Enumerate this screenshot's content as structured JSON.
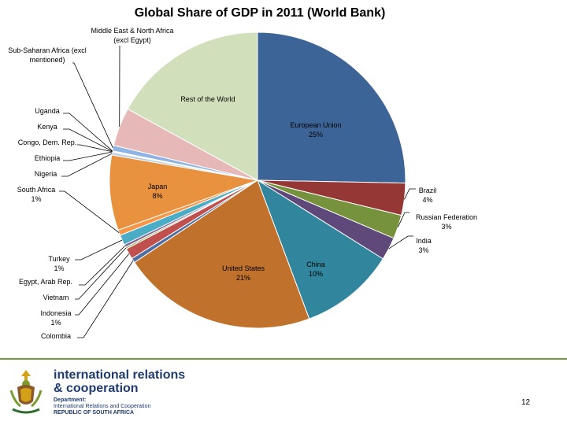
{
  "chart_data": {
    "type": "pie",
    "title": "Global Share of GDP in 2011 (World Bank)",
    "slices": [
      {
        "name": "European Union",
        "value_label": "25%",
        "value": 25.3,
        "color": "#3d6496"
      },
      {
        "name": "Brazil",
        "value_label": "4%",
        "value": 3.5,
        "color": "#953735"
      },
      {
        "name": "Russian Federation",
        "value_label": "3%",
        "value": 2.6,
        "color": "#76923c"
      },
      {
        "name": "India",
        "value_label": "3%",
        "value": 2.5,
        "color": "#5f497a"
      },
      {
        "name": "China",
        "value_label": "10%",
        "value": 10.4,
        "color": "#31859c"
      },
      {
        "name": "United States",
        "value_label": "21%",
        "value": 21.3,
        "color": "#c0722c"
      },
      {
        "name": "Colombia",
        "value_label": "",
        "value": 0.5,
        "color": "#4f6fa0"
      },
      {
        "name": "Indonesia",
        "value_label": "1%",
        "value": 1.2,
        "color": "#c0504d"
      },
      {
        "name": "Vietnam",
        "value_label": "",
        "value": 0.2,
        "color": "#9bbb59"
      },
      {
        "name": "Egypt, Arab Rep.",
        "value_label": "",
        "value": 0.3,
        "color": "#8064a2"
      },
      {
        "name": "Turkey",
        "value_label": "1%",
        "value": 1.1,
        "color": "#4bacc6"
      },
      {
        "name": "South Africa",
        "value_label": "1%",
        "value": 0.6,
        "color": "#f79646"
      },
      {
        "name": "Japan",
        "value_label": "8%",
        "value": 8.2,
        "color": "#e8913f"
      },
      {
        "name": "Nigeria",
        "value_label": "",
        "value": 0.3,
        "color": "#b9cde5"
      },
      {
        "name": "Ethiopia",
        "value_label": "",
        "value": 0.05,
        "color": "#e6b9b8"
      },
      {
        "name": "Congo, Dem. Rep.",
        "value_label": "",
        "value": 0.03,
        "color": "#d7e4bc"
      },
      {
        "name": "Kenya",
        "value_label": "",
        "value": 0.05,
        "color": "#ccc0da"
      },
      {
        "name": "Uganda",
        "value_label": "",
        "value": 0.03,
        "color": "#b7dee8"
      },
      {
        "name": "Sub-Saharan Africa (excl mentioned)",
        "value_label": "",
        "value": 0.6,
        "color": "#8eb4e3"
      },
      {
        "name": "Middle East & North Africa (excl Egypt)",
        "value_label": "",
        "value": 4.2,
        "color": "#e6b9b8"
      },
      {
        "name": "Rest of the World",
        "value_label": "",
        "value": 17.0,
        "color": "#d2dfbb"
      }
    ]
  },
  "labels": {
    "mena_1": "Middle East & North Africa",
    "mena_2": "(excl Egypt)",
    "ssa_1": "Sub-Saharan Africa (excl",
    "ssa_2": "mentioned)",
    "rest": "Rest of the World",
    "uganda": "Uganda",
    "kenya": "Kenya",
    "congo": "Congo, Dem. Rep.",
    "ethiopia": "Ethiopia",
    "nigeria": "Nigeria",
    "south_africa_1": "South Africa",
    "south_africa_2": "1%",
    "eu_1": "European Union",
    "eu_2": "25%",
    "japan_1": "Japan",
    "japan_2": "8%",
    "brazil_1": "Brazil",
    "brazil_2": "4%",
    "russia_1": "Russian Federation",
    "russia_2": "3%",
    "india_1": "India",
    "india_2": "3%",
    "turkey_1": "Turkey",
    "turkey_2": "1%",
    "egypt": "Egypt, Arab Rep.",
    "us_1": "United States",
    "us_2": "21%",
    "china_1": "China",
    "china_2": "10%",
    "vietnam": "Vietnam",
    "indonesia_1": "Indonesia",
    "indonesia_2": "1%",
    "colombia": "Colombia"
  },
  "footer": {
    "brand_line1": "international relations",
    "brand_line2": "& cooperation",
    "dept_line1": "Department:",
    "dept_line2": "International Relations and Cooperation",
    "dept_line3": "REPUBLIC OF SOUTH AFRICA",
    "page_number": "12"
  }
}
